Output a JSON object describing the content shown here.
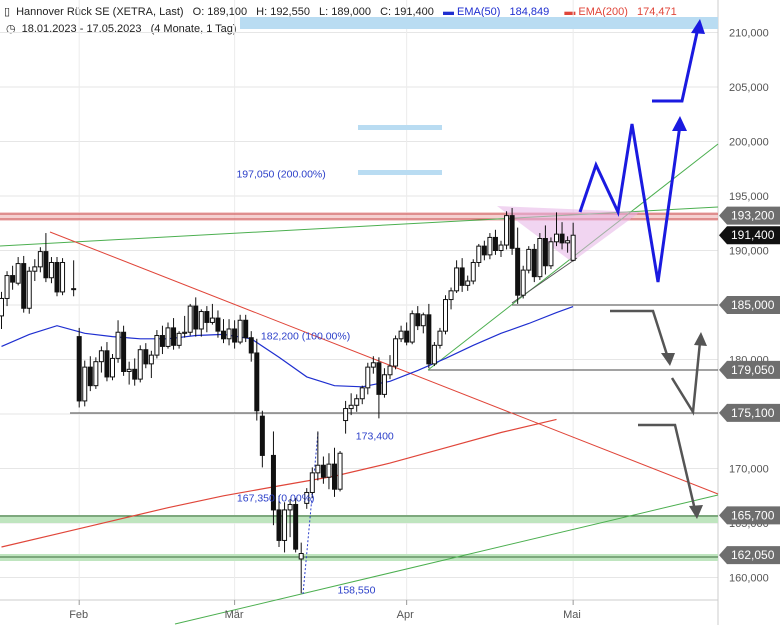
{
  "header": {
    "instrument": "Hannover Rück SE (XETRA, Last)",
    "open": "O: 189,100",
    "high": "H: 192,550",
    "low": "L: 189,000",
    "close": "C: 191,400",
    "ema50_label": "EMA(50)",
    "ema50_value": "184,849",
    "ema200_label": "EMA(200)",
    "ema200_value": "174,471",
    "date_range": "18.01.2023 - 17.05.2023",
    "duration": "(4 Monate, 1 Tag)",
    "ema50_color": "#1f2fd0",
    "ema200_color": "#e0463a"
  },
  "chart_data": {
    "type": "candlestick",
    "x_axis_ticks": [
      {
        "label": "Feb",
        "day": 14
      },
      {
        "label": "Mär",
        "day": 42
      },
      {
        "label": "Apr",
        "day": 73
      },
      {
        "label": "Mai",
        "day": 103
      }
    ],
    "y_axis_ticks": [
      160,
      165,
      170,
      175,
      180,
      185,
      190,
      195,
      200,
      205,
      210
    ],
    "ylim": [
      157.5,
      211.3
    ],
    "grid": true,
    "price_tags": [
      {
        "label": "193,200",
        "value": 193.2,
        "style": "grey"
      },
      {
        "label": "191,400",
        "value": 191.4,
        "style": "black"
      },
      {
        "label": "185,000",
        "value": 185.0,
        "style": "grey"
      },
      {
        "label": "179,050",
        "value": 179.05,
        "style": "grey"
      },
      {
        "label": "175,100",
        "value": 175.1,
        "style": "grey"
      },
      {
        "label": "165,700",
        "value": 165.7,
        "style": "grey"
      },
      {
        "label": "162,050",
        "value": 162.05,
        "style": "grey"
      }
    ],
    "annotations": [
      {
        "label": "197,050 (200.00%)",
        "day": 69,
        "value": 197.05
      },
      {
        "label": "182,200 (100.00%)",
        "day": 68,
        "value": 182.2
      },
      {
        "label": "173,400",
        "day": 66,
        "value": 173.4
      },
      {
        "label": "167,350 (0.00%)",
        "day": 68,
        "value": 167.35
      },
      {
        "label": "158,550",
        "day": 60,
        "value": 158.55
      }
    ],
    "ohlc": [
      {
        "d": 0,
        "o": 184,
        "h": 186.2,
        "l": 182.8,
        "c": 185.6
      },
      {
        "d": 1,
        "o": 185.6,
        "h": 188.1,
        "l": 184.9,
        "c": 187.7
      },
      {
        "d": 2,
        "o": 187.7,
        "h": 188.6,
        "l": 186.4,
        "c": 187.1
      },
      {
        "d": 3,
        "o": 187,
        "h": 189.4,
        "l": 186.8,
        "c": 188.8
      },
      {
        "d": 4,
        "o": 188.8,
        "h": 189.5,
        "l": 184.3,
        "c": 184.7
      },
      {
        "d": 5,
        "o": 184.7,
        "h": 188.5,
        "l": 184.2,
        "c": 188.1
      },
      {
        "d": 6,
        "o": 188.1,
        "h": 189.2,
        "l": 187.2,
        "c": 188.5
      },
      {
        "d": 7,
        "o": 188.5,
        "h": 190.3,
        "l": 188,
        "c": 189.9
      },
      {
        "d": 8,
        "o": 189.9,
        "h": 191.6,
        "l": 187.1,
        "c": 187.5
      },
      {
        "d": 9,
        "o": 187.5,
        "h": 189.4,
        "l": 187,
        "c": 188.9
      },
      {
        "d": 10,
        "o": 188.9,
        "h": 189.4,
        "l": 185.8,
        "c": 186.2
      },
      {
        "d": 11,
        "o": 186.2,
        "h": 189.3,
        "l": 185.9,
        "c": 188.9
      },
      {
        "d": 13,
        "o": 186.5,
        "h": 189.1,
        "l": 185.8,
        "c": 186.5
      },
      {
        "d": 14,
        "o": 182.1,
        "h": 182.9,
        "l": 175.6,
        "c": 176.2
      },
      {
        "d": 15,
        "o": 176.2,
        "h": 179.9,
        "l": 175.7,
        "c": 179.3
      },
      {
        "d": 16,
        "o": 179.3,
        "h": 180.3,
        "l": 177.1,
        "c": 177.6
      },
      {
        "d": 17,
        "o": 177.6,
        "h": 180.2,
        "l": 177.3,
        "c": 179.8
      },
      {
        "d": 18,
        "o": 179.8,
        "h": 181.2,
        "l": 178.8,
        "c": 180.8
      },
      {
        "d": 19,
        "o": 180.8,
        "h": 181.6,
        "l": 178,
        "c": 178.4
      },
      {
        "d": 20,
        "o": 178.4,
        "h": 180.5,
        "l": 178.1,
        "c": 180.1
      },
      {
        "d": 21,
        "o": 180.1,
        "h": 183.6,
        "l": 179.7,
        "c": 182.5
      },
      {
        "d": 22,
        "o": 182.5,
        "h": 183.1,
        "l": 178.5,
        "c": 178.9
      },
      {
        "d": 23,
        "o": 178.9,
        "h": 179.8,
        "l": 177.7,
        "c": 179.1
      },
      {
        "d": 24,
        "o": 179.1,
        "h": 180.1,
        "l": 177.6,
        "c": 178.2
      },
      {
        "d": 25,
        "o": 178.2,
        "h": 181.3,
        "l": 177.9,
        "c": 180.9
      },
      {
        "d": 26,
        "o": 180.9,
        "h": 181.5,
        "l": 179.2,
        "c": 179.6
      },
      {
        "d": 27,
        "o": 179.6,
        "h": 180.8,
        "l": 178.3,
        "c": 180.4
      },
      {
        "d": 28,
        "o": 180.4,
        "h": 182.7,
        "l": 180.1,
        "c": 182.2
      },
      {
        "d": 29,
        "o": 182.2,
        "h": 183.1,
        "l": 180.5,
        "c": 181.2
      },
      {
        "d": 30,
        "o": 181.2,
        "h": 183.4,
        "l": 181,
        "c": 182.9
      },
      {
        "d": 31,
        "o": 182.9,
        "h": 183.8,
        "l": 180.9,
        "c": 181.3
      },
      {
        "d": 32,
        "o": 181.3,
        "h": 182.6,
        "l": 181,
        "c": 182.4
      },
      {
        "d": 33,
        "o": 182.4,
        "h": 184,
        "l": 182,
        "c": 182.5
      },
      {
        "d": 34,
        "o": 182.5,
        "h": 185.1,
        "l": 182.2,
        "c": 184.9
      },
      {
        "d": 35,
        "o": 184.9,
        "h": 185.7,
        "l": 182.1,
        "c": 182.8
      },
      {
        "d": 36,
        "o": 182.8,
        "h": 184.6,
        "l": 182.1,
        "c": 184.4
      },
      {
        "d": 37,
        "o": 184.4,
        "h": 184.9,
        "l": 182.5,
        "c": 183.4
      },
      {
        "d": 38,
        "o": 183.4,
        "h": 185.1,
        "l": 183.2,
        "c": 183.8
      },
      {
        "d": 39,
        "o": 183.8,
        "h": 184.5,
        "l": 182,
        "c": 182.6
      },
      {
        "d": 40,
        "o": 182.6,
        "h": 183.7,
        "l": 181.5,
        "c": 181.9
      },
      {
        "d": 41,
        "o": 181.9,
        "h": 183.7,
        "l": 181.3,
        "c": 182.8
      },
      {
        "d": 42,
        "o": 182.8,
        "h": 183.6,
        "l": 181,
        "c": 181.6
      },
      {
        "d": 43,
        "o": 181.6,
        "h": 184.1,
        "l": 181.4,
        "c": 183.6
      },
      {
        "d": 44,
        "o": 183.6,
        "h": 184.1,
        "l": 181.6,
        "c": 182
      },
      {
        "d": 45,
        "o": 182,
        "h": 182.6,
        "l": 179.8,
        "c": 180.6
      },
      {
        "d": 46,
        "o": 180.6,
        "h": 181.9,
        "l": 174.4,
        "c": 175.3
      },
      {
        "d": 47,
        "o": 174.8,
        "h": 175.3,
        "l": 170.1,
        "c": 171.2
      },
      {
        "d": 49,
        "o": 171.2,
        "h": 173.4,
        "l": 164.8,
        "c": 166.2
      },
      {
        "d": 50,
        "o": 166.2,
        "h": 167.5,
        "l": 162.8,
        "c": 163.4
      },
      {
        "d": 51,
        "o": 163.4,
        "h": 166.9,
        "l": 162.3,
        "c": 166.2
      },
      {
        "d": 52,
        "o": 166.2,
        "h": 167.2,
        "l": 163.7,
        "c": 166.7
      },
      {
        "d": 53,
        "o": 166.7,
        "h": 167.3,
        "l": 162.3,
        "c": 162.6
      },
      {
        "d": 54,
        "o": 161.7,
        "h": 163.2,
        "l": 158.55,
        "c": 162.2
      },
      {
        "d": 55,
        "o": 166.8,
        "h": 168.2,
        "l": 166.3,
        "c": 167.8
      },
      {
        "d": 56,
        "o": 167.8,
        "h": 170.1,
        "l": 167.3,
        "c": 169.6
      },
      {
        "d": 57,
        "o": 169.6,
        "h": 173.4,
        "l": 168.9,
        "c": 170.3
      },
      {
        "d": 58,
        "o": 170.3,
        "h": 171.1,
        "l": 168.6,
        "c": 169.2
      },
      {
        "d": 59,
        "o": 169.2,
        "h": 171.4,
        "l": 168.1,
        "c": 170.4
      },
      {
        "d": 60,
        "o": 170.4,
        "h": 171.9,
        "l": 167.4,
        "c": 168.1
      },
      {
        "d": 61,
        "o": 168.1,
        "h": 171.6,
        "l": 167.9,
        "c": 171.4
      },
      {
        "d": 62,
        "o": 174.4,
        "h": 176.2,
        "l": 173.2,
        "c": 175.5
      },
      {
        "d": 63,
        "o": 175.5,
        "h": 176.9,
        "l": 174.9,
        "c": 175.8
      },
      {
        "d": 64,
        "o": 175.8,
        "h": 176.8,
        "l": 175.2,
        "c": 176.4
      },
      {
        "d": 65,
        "o": 176.4,
        "h": 177.6,
        "l": 175.9,
        "c": 177.4
      },
      {
        "d": 66,
        "o": 177.4,
        "h": 179.7,
        "l": 176.8,
        "c": 179.3
      },
      {
        "d": 67,
        "o": 179.3,
        "h": 180.3,
        "l": 178.7,
        "c": 179.7
      },
      {
        "d": 68,
        "o": 179.7,
        "h": 180.2,
        "l": 174.6,
        "c": 176.8
      },
      {
        "d": 69,
        "o": 176.8,
        "h": 179.2,
        "l": 176.5,
        "c": 178.6
      },
      {
        "d": 70,
        "o": 178.6,
        "h": 180.4,
        "l": 178.2,
        "c": 179.4
      },
      {
        "d": 71,
        "o": 179.4,
        "h": 182.2,
        "l": 179.1,
        "c": 181.9
      },
      {
        "d": 72,
        "o": 181.9,
        "h": 183.1,
        "l": 181.6,
        "c": 182.6
      },
      {
        "d": 73,
        "o": 182.6,
        "h": 183.4,
        "l": 181.3,
        "c": 181.6
      },
      {
        "d": 74,
        "o": 181.6,
        "h": 184.5,
        "l": 181.4,
        "c": 184.2
      },
      {
        "d": 75,
        "o": 184.2,
        "h": 184.9,
        "l": 182.7,
        "c": 183.1
      },
      {
        "d": 76,
        "o": 183.1,
        "h": 184.3,
        "l": 182.4,
        "c": 184.1
      },
      {
        "d": 77,
        "o": 184.1,
        "h": 185.1,
        "l": 179.2,
        "c": 179.6
      },
      {
        "d": 78,
        "o": 179.6,
        "h": 181.6,
        "l": 179.4,
        "c": 181.3
      },
      {
        "d": 79,
        "o": 181.3,
        "h": 182.9,
        "l": 181,
        "c": 182.6
      },
      {
        "d": 80,
        "o": 182.6,
        "h": 185.9,
        "l": 182.3,
        "c": 185.5
      },
      {
        "d": 81,
        "o": 185.5,
        "h": 186.6,
        "l": 184.6,
        "c": 186.3
      },
      {
        "d": 82,
        "o": 186.3,
        "h": 189.1,
        "l": 186.1,
        "c": 188.4
      },
      {
        "d": 83,
        "o": 188.4,
        "h": 189.3,
        "l": 186.2,
        "c": 186.8
      },
      {
        "d": 84,
        "o": 186.8,
        "h": 187.7,
        "l": 186.3,
        "c": 187.2
      },
      {
        "d": 85,
        "o": 187.2,
        "h": 189.2,
        "l": 186.9,
        "c": 188.9
      },
      {
        "d": 86,
        "o": 188.9,
        "h": 190.6,
        "l": 188.5,
        "c": 190.4
      },
      {
        "d": 87,
        "o": 190.4,
        "h": 190.9,
        "l": 189.1,
        "c": 189.6
      },
      {
        "d": 88,
        "o": 189.6,
        "h": 191.6,
        "l": 189.2,
        "c": 191.2
      },
      {
        "d": 89,
        "o": 191.2,
        "h": 191.9,
        "l": 189.6,
        "c": 190
      },
      {
        "d": 90,
        "o": 190,
        "h": 190.9,
        "l": 189.4,
        "c": 190.5
      },
      {
        "d": 91,
        "o": 190.5,
        "h": 193.6,
        "l": 190.1,
        "c": 193.2
      },
      {
        "d": 92,
        "o": 193.2,
        "h": 193.9,
        "l": 189.6,
        "c": 190.2
      },
      {
        "d": 93,
        "o": 190.2,
        "h": 192.1,
        "l": 185.1,
        "c": 185.9
      },
      {
        "d": 94,
        "o": 185.9,
        "h": 188.6,
        "l": 185.6,
        "c": 188.2
      },
      {
        "d": 95,
        "o": 188.2,
        "h": 190.4,
        "l": 187.9,
        "c": 190.1
      },
      {
        "d": 96,
        "o": 190.1,
        "h": 190.6,
        "l": 187.1,
        "c": 187.6
      },
      {
        "d": 97,
        "o": 187.6,
        "h": 191.6,
        "l": 187.3,
        "c": 191.1
      },
      {
        "d": 98,
        "o": 191.1,
        "h": 192.3,
        "l": 187.8,
        "c": 188.6
      },
      {
        "d": 99,
        "o": 188.6,
        "h": 191.2,
        "l": 188.3,
        "c": 190.8
      },
      {
        "d": 100,
        "o": 190.8,
        "h": 193.5,
        "l": 190.4,
        "c": 191.5
      },
      {
        "d": 101,
        "o": 191.5,
        "h": 192.6,
        "l": 190.1,
        "c": 190.7
      },
      {
        "d": 102,
        "o": 190.7,
        "h": 191.3,
        "l": 189.8,
        "c": 190.9
      },
      {
        "d": 103,
        "o": 189.1,
        "h": 192.55,
        "l": 189,
        "c": 191.4
      }
    ],
    "ema50": [
      {
        "d": 0,
        "v": 181.2
      },
      {
        "d": 5,
        "v": 182.3
      },
      {
        "d": 10,
        "v": 183.1
      },
      {
        "d": 15,
        "v": 182.4
      },
      {
        "d": 20,
        "v": 182.1
      },
      {
        "d": 25,
        "v": 181.9
      },
      {
        "d": 30,
        "v": 181.9
      },
      {
        "d": 35,
        "v": 182.2
      },
      {
        "d": 40,
        "v": 182.3
      },
      {
        "d": 45,
        "v": 181.9
      },
      {
        "d": 50,
        "v": 180.2
      },
      {
        "d": 55,
        "v": 178.4
      },
      {
        "d": 60,
        "v": 177.6
      },
      {
        "d": 65,
        "v": 177.5
      },
      {
        "d": 70,
        "v": 178
      },
      {
        "d": 75,
        "v": 179
      },
      {
        "d": 80,
        "v": 180.1
      },
      {
        "d": 85,
        "v": 181.3
      },
      {
        "d": 90,
        "v": 182.4
      },
      {
        "d": 95,
        "v": 183.3
      },
      {
        "d": 100,
        "v": 184.3
      },
      {
        "d": 103,
        "v": 184.85
      }
    ],
    "ema200": [
      {
        "d": 0,
        "v": 162.8
      },
      {
        "d": 10,
        "v": 164
      },
      {
        "d": 20,
        "v": 165.2
      },
      {
        "d": 30,
        "v": 166.4
      },
      {
        "d": 40,
        "v": 167.5
      },
      {
        "d": 50,
        "v": 168.4
      },
      {
        "d": 60,
        "v": 169.3
      },
      {
        "d": 70,
        "v": 170.5
      },
      {
        "d": 80,
        "v": 171.9
      },
      {
        "d": 90,
        "v": 173.3
      },
      {
        "d": 100,
        "v": 174.5
      }
    ]
  }
}
